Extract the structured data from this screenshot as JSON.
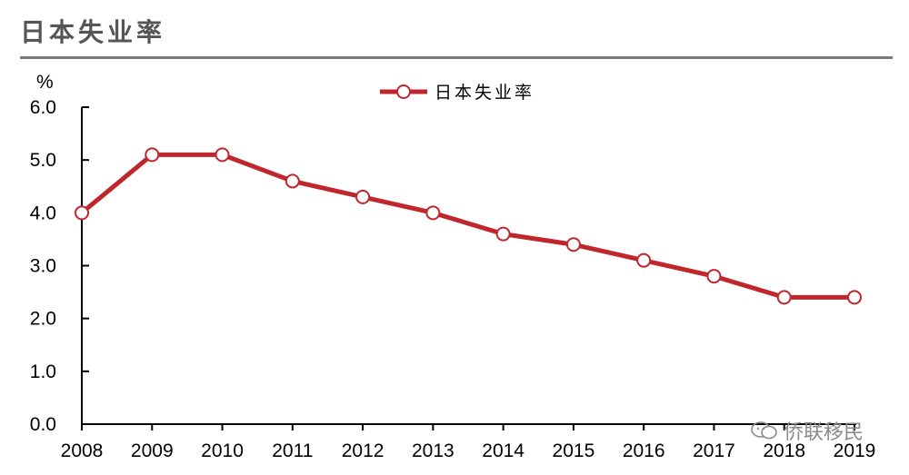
{
  "header": {
    "title": "日本失业率"
  },
  "watermark": {
    "text": "侨联移民"
  },
  "colors": {
    "series": "#c0262c",
    "axis": "#000000",
    "title_rule": "#7a7a7a"
  },
  "chart_data": {
    "type": "line",
    "title": "日本失业率",
    "unit": "%",
    "xlabel": "",
    "ylabel": "",
    "x": [
      "2008",
      "2009",
      "2010",
      "2011",
      "2012",
      "2013",
      "2014",
      "2015",
      "2016",
      "2017",
      "2018",
      "2019"
    ],
    "series": [
      {
        "name": "日本失业率",
        "values": [
          4.0,
          5.1,
          5.1,
          4.6,
          4.3,
          4.0,
          3.6,
          3.4,
          3.1,
          2.8,
          2.4,
          2.4
        ]
      }
    ],
    "ylim": [
      0,
      6
    ],
    "yticks": [
      "0.0",
      "1.0",
      "2.0",
      "3.0",
      "4.0",
      "5.0",
      "6.0"
    ],
    "grid": false,
    "legend": "top-center"
  }
}
